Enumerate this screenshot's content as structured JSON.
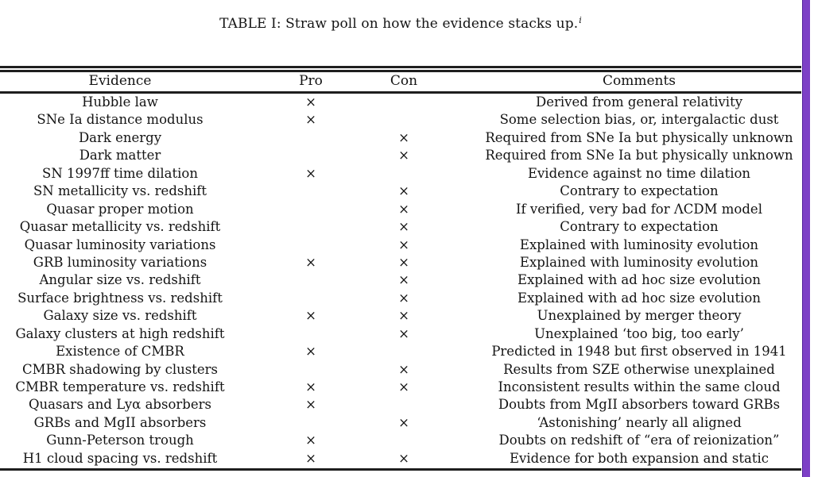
{
  "page": {
    "title": "TABLE I: Straw poll on how the evidence stacks up.",
    "title_footnote_mark": "i"
  },
  "colors": {
    "accent_purple": "#7d40c6",
    "rule_black": "#1e1e1e",
    "background": "#ffffff"
  },
  "table": {
    "headers": {
      "evidence": "Evidence",
      "pro": "Pro",
      "con": "Con",
      "comments": "Comments"
    },
    "rows": [
      {
        "evidence": "Hubble law",
        "pro": "×",
        "con": "",
        "comments": "Derived from general relativity"
      },
      {
        "evidence": "SNe Ia distance modulus",
        "pro": "×",
        "con": "",
        "comments": "Some selection bias, or, intergalactic dust"
      },
      {
        "evidence": "Dark energy",
        "pro": "",
        "con": "×",
        "comments": "Required from SNe Ia but physically unknown"
      },
      {
        "evidence": "Dark matter",
        "pro": "",
        "con": "×",
        "comments": "Required from SNe Ia but physically unknown"
      },
      {
        "evidence": "SN 1997ff time dilation",
        "pro": "×",
        "con": "",
        "comments": "Evidence against no time dilation"
      },
      {
        "evidence": "SN metallicity vs. redshift",
        "pro": "",
        "con": "×",
        "comments": "Contrary to expectation"
      },
      {
        "evidence": "Quasar proper motion",
        "pro": "",
        "con": "×",
        "comments": "If verified, very bad for ΛCDM model"
      },
      {
        "evidence": "Quasar metallicity vs. redshift",
        "pro": "",
        "con": "×",
        "comments": "Contrary to expectation"
      },
      {
        "evidence": "Quasar luminosity variations",
        "pro": "",
        "con": "×",
        "comments": "Explained with luminosity evolution"
      },
      {
        "evidence": "GRB luminosity variations",
        "pro": "×",
        "con": "×",
        "comments": "Explained with luminosity evolution"
      },
      {
        "evidence": "Angular size vs. redshift",
        "pro": "",
        "con": "×",
        "comments": "Explained with ad hoc size evolution"
      },
      {
        "evidence": "Surface brightness vs. redshift",
        "pro": "",
        "con": "×",
        "comments": "Explained with ad hoc size evolution"
      },
      {
        "evidence": "Galaxy size vs. redshift",
        "pro": "×",
        "con": "×",
        "comments": "Unexplained by merger theory"
      },
      {
        "evidence": "Galaxy clusters at high redshift",
        "pro": "",
        "con": "×",
        "comments": "Unexplained ‘too big, too early’"
      },
      {
        "evidence": "Existence of CMBR",
        "pro": "×",
        "con": "",
        "comments": "Predicted in 1948 but first observed in 1941"
      },
      {
        "evidence": "CMBR shadowing by clusters",
        "pro": "",
        "con": "×",
        "comments": "Results from SZE otherwise unexplained"
      },
      {
        "evidence": "CMBR temperature vs. redshift",
        "pro": "×",
        "con": "×",
        "comments": "Inconsistent results within the same cloud"
      },
      {
        "evidence": "Quasars and Lyα absorbers",
        "pro": "×",
        "con": "",
        "comments": "Doubts from MgII absorbers toward GRBs"
      },
      {
        "evidence": "GRBs and MgII absorbers",
        "pro": "",
        "con": "×",
        "comments": "‘Astonishing’ nearly all aligned"
      },
      {
        "evidence": "Gunn-Peterson trough",
        "pro": "×",
        "con": "",
        "comments": "Doubts on redshift of “era of reionization”"
      },
      {
        "evidence": "H1 cloud spacing vs. redshift",
        "pro": "×",
        "con": "×",
        "comments": "Evidence for both expansion and static"
      }
    ]
  }
}
